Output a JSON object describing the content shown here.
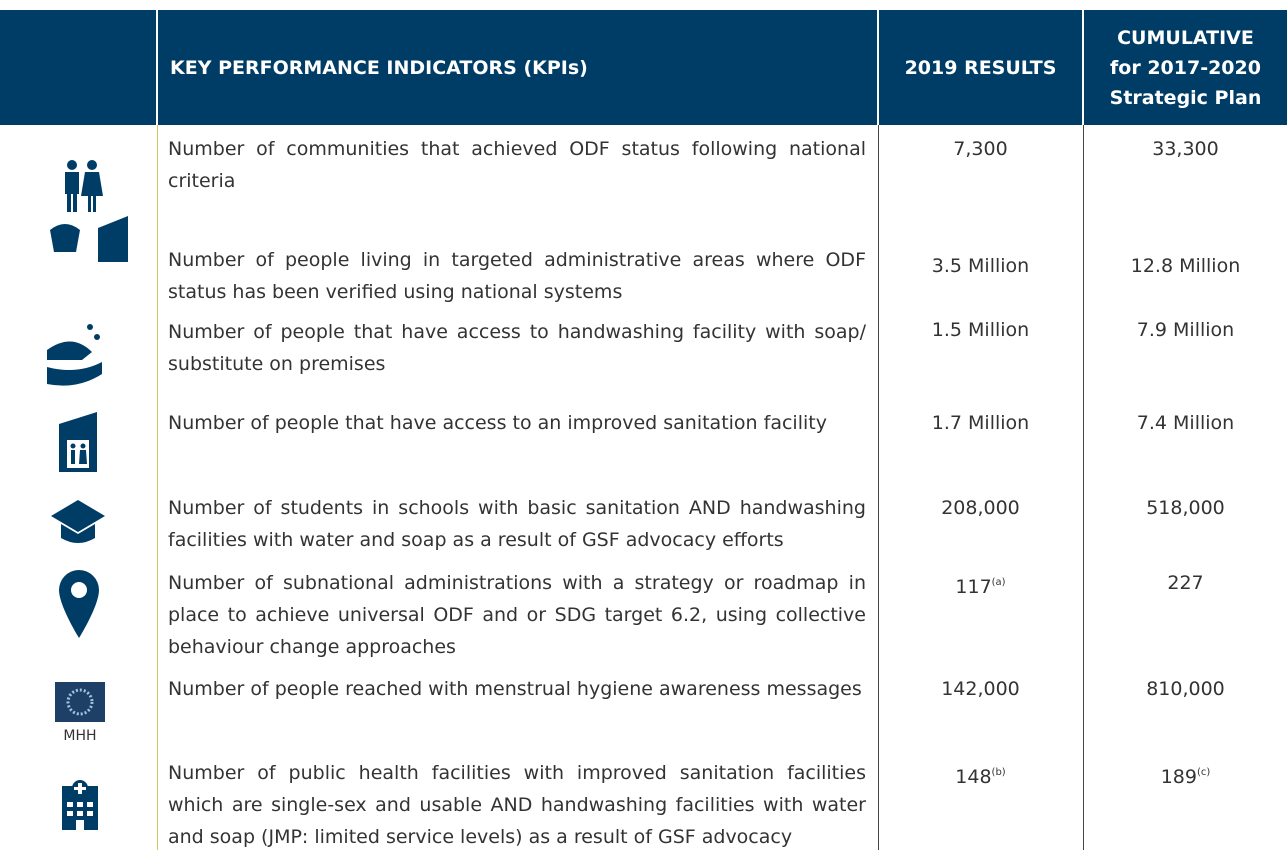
{
  "header": {
    "kpi": "KEY PERFORMANCE INDICATORS (KPIs)",
    "results": "2019 RESULTS",
    "cumulative": [
      "CUMULATIVE",
      "for 2017-2020",
      "Strategic Plan"
    ]
  },
  "icon_label": "MHH",
  "rows": [
    {
      "text": "Number of communities that achieved ODF status following national criteria",
      "result": "7,300",
      "cumulative": "33,300"
    },
    {
      "text": "Number of people living in targeted administrative areas where ODF status has been verified using national systems",
      "result": "3.5 Million",
      "cumulative": "12.8 Million"
    },
    {
      "text": "Number of people that have access to handwashing facility with soap/ substitute on premises",
      "result": "1.5 Million",
      "cumulative": "7.9 Million"
    },
    {
      "text": "Number of people that have access to an improved sanitation facility",
      "result": "1.7 Million",
      "cumulative": "7.4 Million"
    },
    {
      "text": "Number of students in schools with basic sanitation AND handwashing facilities with water and soap as a result of GSF advocacy efforts",
      "result": "208,000",
      "cumulative": "518,000"
    },
    {
      "text": "Number of subnational administrations with a strategy or roadmap in place to achieve universal ODF and or SDG target 6.2, using collective behaviour change approaches",
      "result": "117",
      "result_note": "(a)",
      "cumulative": "227"
    },
    {
      "text": "Number of people reached with menstrual hygiene awareness messages",
      "result": "142,000",
      "cumulative": "810,000"
    },
    {
      "text": "Number of public health facilities with improved sanitation facilities which are single-sex and usable AND handwashing facilities with water and soap (JMP: limited service levels) as a result of GSF advocacy",
      "result": "148",
      "result_note": "(b)",
      "cumulative": "189",
      "cumulative_note": "(c)"
    }
  ]
}
